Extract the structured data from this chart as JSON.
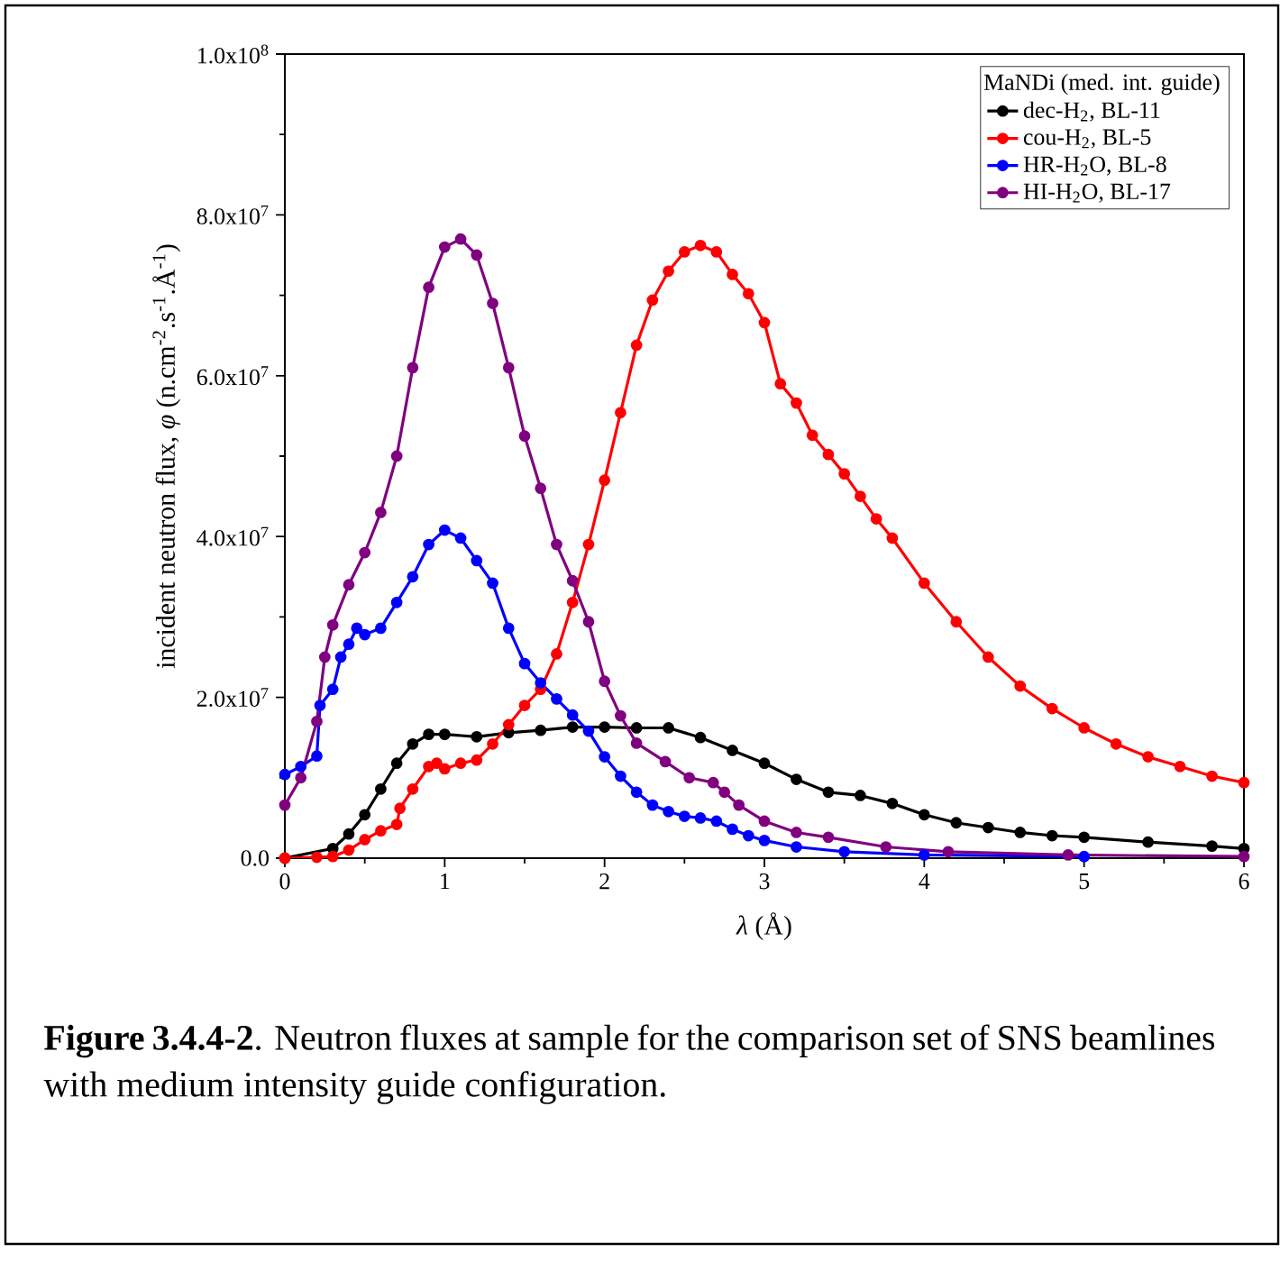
{
  "chart_data": {
    "type": "line",
    "xlabel": "*λ* (Å)",
    "ylabel": "incident neutron flux, *φ*  (n.cm$^{-2}$.s$^{-1}$.Å$^{-1}$)",
    "legend_title": "MaNDi (med. int. guide)",
    "legend": "top right",
    "marker": "circle",
    "line_style": "solid",
    "xlim": [
      0,
      6
    ],
    "xticks": [
      0,
      1,
      2,
      3,
      4,
      5,
      6
    ],
    "ylim": [
      0,
      100000000
    ],
    "yticks": [
      {
        "value": 0,
        "label": "0.0"
      },
      {
        "value": 20000000,
        "label": "2.0x10$^{7}$"
      },
      {
        "value": 40000000,
        "label": "4.0x10$^{7}$"
      },
      {
        "value": 60000000,
        "label": "6.0x10$^{7}$"
      },
      {
        "value": 80000000,
        "label": "8.0x10$^{7}$"
      },
      {
        "value": 100000000,
        "label": "1.0x10$^{8}$"
      }
    ],
    "annotations": [
      "**Figure 3.4.4-2**. Neutron fluxes at sample for the comparison set of SNS beamlines with medium intensity guide configuration."
    ],
    "series": [
      {
        "name": "dec-H$_{2}$,    BL-11",
        "color": "#000000",
        "x": [
          0,
          0.2,
          0.3,
          0.4,
          0.5,
          0.6,
          0.7,
          0.8,
          0.9,
          1.0,
          1.2,
          1.4,
          1.6,
          1.8,
          2.0,
          2.2,
          2.4,
          2.6,
          2.8,
          3.0,
          3.2,
          3.4,
          3.6,
          3.8,
          4.0,
          4.2,
          4.4,
          4.6,
          4.8,
          5.0,
          5.4,
          5.8,
          6.0
        ],
        "values": [
          0,
          null,
          1200000.0,
          3000000.0,
          5400000.0,
          8600000.0,
          11800000.0,
          14200000.0,
          15400000.0,
          15400000.0,
          15100000.0,
          15600000.0,
          15900000.0,
          16300000.0,
          16300000.0,
          16200000.0,
          16200000.0,
          15000000.0,
          13400000.0,
          11800000.0,
          9800000.0,
          8200000.0,
          7800000.0,
          6800000.0,
          5400000.0,
          4400000.0,
          3800000.0,
          3200000.0,
          2800000.0,
          2600000.0,
          2000000.0,
          1500000.0,
          1200000.0
        ]
      },
      {
        "name": "cou-H$_{2}$,    BL-5",
        "color": "#ff0000",
        "x": [
          0,
          0.2,
          0.3,
          0.4,
          0.5,
          0.6,
          0.7,
          0.72,
          0.8,
          0.9,
          0.95,
          1.0,
          1.1,
          1.2,
          1.3,
          1.4,
          1.5,
          1.6,
          1.7,
          1.8,
          1.9,
          2.0,
          2.1,
          2.2,
          2.3,
          2.4,
          2.5,
          2.6,
          2.7,
          2.8,
          2.9,
          3.0,
          3.1,
          3.2,
          3.3,
          3.4,
          3.5,
          3.6,
          3.7,
          3.8,
          4.0,
          4.2,
          4.4,
          4.6,
          4.8,
          5.0,
          5.2,
          5.4,
          5.6,
          5.8,
          6.0
        ],
        "values": [
          0,
          100000.0,
          200000.0,
          1000000.0,
          2300000.0,
          3400000.0,
          4200000.0,
          6200000.0,
          8600000.0,
          11400000.0,
          11800000.0,
          11100000.0,
          11800000.0,
          12200000.0,
          14200000.0,
          16600000.0,
          19000000.0,
          21000000.0,
          25400000.0,
          31800000.0,
          39000000.0,
          47000000.0,
          55400000.0,
          63800000.0,
          69400000.0,
          73000000.0,
          75400000.0,
          76200000.0,
          75400000.0,
          72600000.0,
          70200000.0,
          66600000.0,
          59000000.0,
          56600000.0,
          52600000.0,
          50200000.0,
          47800000.0,
          45000000.0,
          42200000.0,
          39800000.0,
          34200000.0,
          29400000.0,
          25000000.0,
          21400000.0,
          18600000.0,
          16200000.0,
          14200000.0,
          12600000.0,
          11400000.0,
          10200000.0,
          9400000.0
        ]
      },
      {
        "name": "HR-H$_{2}$O,  BL-8",
        "color": "#0000ff",
        "x": [
          0,
          0.1,
          0.2,
          0.22,
          0.3,
          0.35,
          0.4,
          0.45,
          0.5,
          0.6,
          0.7,
          0.8,
          0.9,
          1.0,
          1.1,
          1.2,
          1.3,
          1.4,
          1.5,
          1.6,
          1.7,
          1.8,
          1.9,
          2.0,
          2.1,
          2.2,
          2.3,
          2.4,
          2.5,
          2.6,
          2.7,
          2.8,
          2.9,
          3.0,
          3.2,
          3.5,
          4.0,
          5.0
        ],
        "values": [
          10400000.0,
          11400000.0,
          12700000.0,
          19000000.0,
          21000000.0,
          25000000.0,
          26600000.0,
          28600000.0,
          27800000.0,
          28600000.0,
          31800000.0,
          35000000.0,
          39000000.0,
          40800000.0,
          39800000.0,
          37000000.0,
          34200000.0,
          28600000.0,
          24200000.0,
          21800000.0,
          19800000.0,
          17800000.0,
          15800000.0,
          12600000.0,
          10200000.0,
          8200000.0,
          6600000.0,
          5800000.0,
          5200000.0,
          5000000.0,
          4600000.0,
          3600000.0,
          2800000.0,
          2200000.0,
          1400000.0,
          800000.0,
          400000.0,
          200000.0
        ]
      },
      {
        "name": "HI-H$_{2}$O,   BL-17",
        "color": "#800080",
        "x": [
          0,
          0.1,
          0.2,
          0.25,
          0.3,
          0.4,
          0.5,
          0.6,
          0.7,
          0.8,
          0.9,
          1.0,
          1.1,
          1.2,
          1.3,
          1.4,
          1.5,
          1.6,
          1.7,
          1.8,
          1.9,
          2.0,
          2.1,
          2.2,
          2.38,
          2.53,
          2.68,
          2.75,
          2.84,
          3.0,
          3.2,
          3.4,
          3.76,
          4.15,
          4.9,
          6.0
        ],
        "values": [
          6600000.0,
          10000000.0,
          17000000.0,
          25000000.0,
          29000000.0,
          34000000.0,
          38000000.0,
          43000000.0,
          50000000.0,
          61000000.0,
          71000000.0,
          76000000.0,
          77000000.0,
          75000000.0,
          69000000.0,
          61000000.0,
          52500000.0,
          46000000.0,
          39000000.0,
          34500000.0,
          29400000.0,
          22000000.0,
          17700000.0,
          14300000.0,
          12000000.0,
          10000000.0,
          9400000.0,
          8200000.0,
          6600000.0,
          4600000.0,
          3200000.0,
          2600000.0,
          1400000.0,
          800000.0,
          400000.0,
          200000.0
        ]
      }
    ]
  }
}
